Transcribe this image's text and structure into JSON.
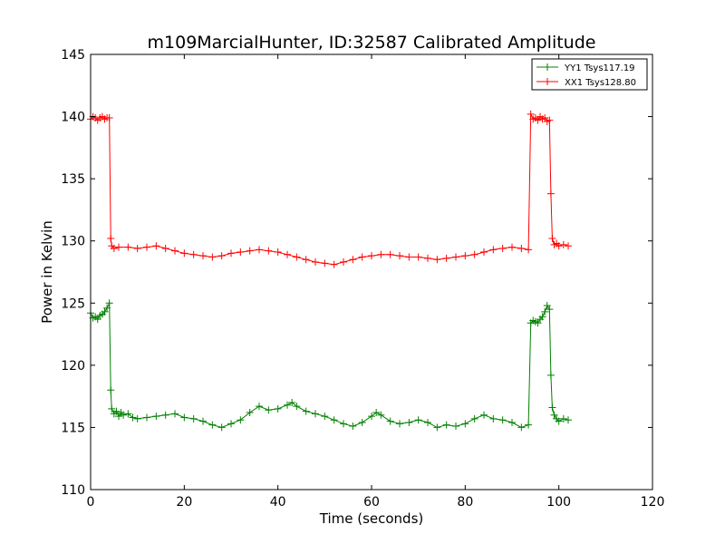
{
  "chart_data": {
    "type": "line",
    "title": "m109MarcialHunter, ID:32587 Calibrated Amplitude",
    "xlabel": "Time (seconds)",
    "ylabel": "Power in Kelvin",
    "xlim": [
      0,
      120
    ],
    "ylim": [
      110,
      145
    ],
    "xticks": [
      0,
      20,
      40,
      60,
      80,
      100,
      120
    ],
    "yticks": [
      110,
      115,
      120,
      125,
      130,
      135,
      140,
      145
    ],
    "grid": false,
    "legend_position": "top-right",
    "marker": "+",
    "series": [
      {
        "name": "YY1 Tsys117.19",
        "color": "#008000",
        "points": [
          [
            0.0,
            124.2
          ],
          [
            0.5,
            123.8
          ],
          [
            1.0,
            123.9
          ],
          [
            1.5,
            123.7
          ],
          [
            2.0,
            124.0
          ],
          [
            2.5,
            124.1
          ],
          [
            3.0,
            124.3
          ],
          [
            3.5,
            124.6
          ],
          [
            4.0,
            125.0
          ],
          [
            4.3,
            118.0
          ],
          [
            4.5,
            116.5
          ],
          [
            5.0,
            116.1
          ],
          [
            5.5,
            116.3
          ],
          [
            6.0,
            115.9
          ],
          [
            6.5,
            116.2
          ],
          [
            7.0,
            116.0
          ],
          [
            8.0,
            116.1
          ],
          [
            9.0,
            115.8
          ],
          [
            10.0,
            115.7
          ],
          [
            12.0,
            115.8
          ],
          [
            14.0,
            115.9
          ],
          [
            16.0,
            116.0
          ],
          [
            18.0,
            116.1
          ],
          [
            20.0,
            115.8
          ],
          [
            22.0,
            115.7
          ],
          [
            24.0,
            115.5
          ],
          [
            26.0,
            115.2
          ],
          [
            28.0,
            115.0
          ],
          [
            30.0,
            115.3
          ],
          [
            32.0,
            115.6
          ],
          [
            34.0,
            116.2
          ],
          [
            36.0,
            116.7
          ],
          [
            38.0,
            116.4
          ],
          [
            40.0,
            116.5
          ],
          [
            42.0,
            116.8
          ],
          [
            43.0,
            117.0
          ],
          [
            44.0,
            116.7
          ],
          [
            46.0,
            116.3
          ],
          [
            48.0,
            116.1
          ],
          [
            50.0,
            115.9
          ],
          [
            52.0,
            115.6
          ],
          [
            54.0,
            115.3
          ],
          [
            56.0,
            115.1
          ],
          [
            58.0,
            115.4
          ],
          [
            60.0,
            115.9
          ],
          [
            61.0,
            116.2
          ],
          [
            62.0,
            116.0
          ],
          [
            64.0,
            115.5
          ],
          [
            66.0,
            115.3
          ],
          [
            68.0,
            115.4
          ],
          [
            70.0,
            115.6
          ],
          [
            72.0,
            115.4
          ],
          [
            74.0,
            115.0
          ],
          [
            76.0,
            115.2
          ],
          [
            78.0,
            115.1
          ],
          [
            80.0,
            115.3
          ],
          [
            82.0,
            115.7
          ],
          [
            84.0,
            116.0
          ],
          [
            86.0,
            115.7
          ],
          [
            88.0,
            115.6
          ],
          [
            90.0,
            115.4
          ],
          [
            92.0,
            115.0
          ],
          [
            93.5,
            115.2
          ],
          [
            94.0,
            123.4
          ],
          [
            94.5,
            123.6
          ],
          [
            95.0,
            123.5
          ],
          [
            95.5,
            123.4
          ],
          [
            96.0,
            123.7
          ],
          [
            96.5,
            123.9
          ],
          [
            97.0,
            124.3
          ],
          [
            97.5,
            124.8
          ],
          [
            98.0,
            124.5
          ],
          [
            98.3,
            119.2
          ],
          [
            98.6,
            116.6
          ],
          [
            99.0,
            116.0
          ],
          [
            99.5,
            115.7
          ],
          [
            100.0,
            115.5
          ],
          [
            101.0,
            115.7
          ],
          [
            102.0,
            115.6
          ]
        ]
      },
      {
        "name": "XX1 Tsys128.80",
        "color": "#ff0000",
        "points": [
          [
            0.0,
            139.8
          ],
          [
            0.5,
            140.0
          ],
          [
            1.0,
            139.9
          ],
          [
            1.5,
            139.7
          ],
          [
            2.0,
            139.9
          ],
          [
            2.5,
            140.0
          ],
          [
            3.0,
            139.8
          ],
          [
            3.5,
            139.9
          ],
          [
            4.0,
            139.9
          ],
          [
            4.3,
            130.2
          ],
          [
            4.5,
            129.6
          ],
          [
            5.0,
            129.4
          ],
          [
            6.0,
            129.5
          ],
          [
            8.0,
            129.5
          ],
          [
            10.0,
            129.4
          ],
          [
            12.0,
            129.5
          ],
          [
            14.0,
            129.6
          ],
          [
            16.0,
            129.4
          ],
          [
            18.0,
            129.2
          ],
          [
            20.0,
            129.0
          ],
          [
            22.0,
            128.9
          ],
          [
            24.0,
            128.8
          ],
          [
            26.0,
            128.7
          ],
          [
            28.0,
            128.8
          ],
          [
            30.0,
            129.0
          ],
          [
            32.0,
            129.1
          ],
          [
            34.0,
            129.2
          ],
          [
            36.0,
            129.3
          ],
          [
            38.0,
            129.2
          ],
          [
            40.0,
            129.1
          ],
          [
            42.0,
            128.9
          ],
          [
            44.0,
            128.7
          ],
          [
            46.0,
            128.5
          ],
          [
            48.0,
            128.3
          ],
          [
            50.0,
            128.2
          ],
          [
            52.0,
            128.1
          ],
          [
            54.0,
            128.3
          ],
          [
            56.0,
            128.5
          ],
          [
            58.0,
            128.7
          ],
          [
            60.0,
            128.8
          ],
          [
            62.0,
            128.9
          ],
          [
            64.0,
            128.9
          ],
          [
            66.0,
            128.8
          ],
          [
            68.0,
            128.7
          ],
          [
            70.0,
            128.7
          ],
          [
            72.0,
            128.6
          ],
          [
            74.0,
            128.5
          ],
          [
            76.0,
            128.6
          ],
          [
            78.0,
            128.7
          ],
          [
            80.0,
            128.8
          ],
          [
            82.0,
            128.9
          ],
          [
            84.0,
            129.1
          ],
          [
            86.0,
            129.3
          ],
          [
            88.0,
            129.4
          ],
          [
            90.0,
            129.5
          ],
          [
            92.0,
            129.4
          ],
          [
            93.5,
            129.3
          ],
          [
            94.0,
            140.2
          ],
          [
            94.5,
            139.8
          ],
          [
            95.0,
            139.9
          ],
          [
            95.5,
            139.7
          ],
          [
            96.0,
            140.0
          ],
          [
            96.5,
            139.8
          ],
          [
            97.0,
            139.9
          ],
          [
            97.5,
            139.6
          ],
          [
            98.0,
            139.7
          ],
          [
            98.3,
            133.8
          ],
          [
            98.6,
            130.2
          ],
          [
            99.0,
            129.7
          ],
          [
            99.5,
            129.8
          ],
          [
            100.0,
            129.6
          ],
          [
            101.0,
            129.7
          ],
          [
            102.0,
            129.6
          ]
        ]
      }
    ]
  }
}
